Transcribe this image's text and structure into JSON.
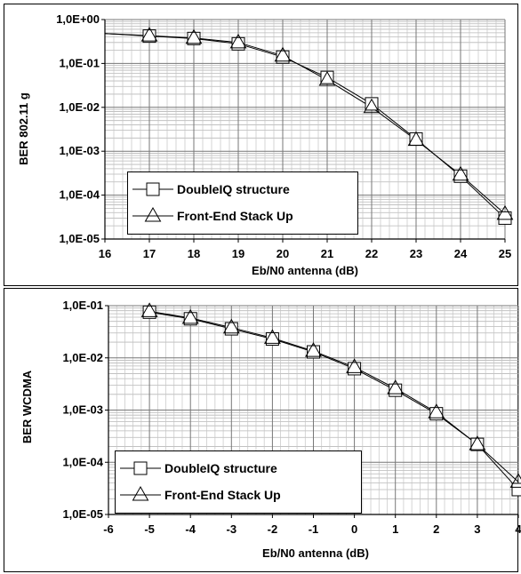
{
  "chart_data": [
    {
      "type": "line",
      "xlabel": "Eb/N0 antenna (dB)",
      "ylabel": "BER 802.11 g",
      "xlim": [
        16,
        25
      ],
      "ylim": [
        1e-05,
        1
      ],
      "y_scale": "log",
      "x_ticks": [
        "16",
        "17",
        "18",
        "19",
        "20",
        "21",
        "22",
        "23",
        "24",
        "25"
      ],
      "y_ticks": [
        "1,0E+00",
        "1,0E-01",
        "1,0E-02",
        "1,0E-03",
        "1,0E-04",
        "1,0E-05"
      ],
      "grid": true,
      "legend_position": "bottom-left",
      "series": [
        {
          "name": "DoubleIQ structure",
          "marker": "square",
          "x": [
            16,
            17,
            18,
            19,
            20,
            21,
            22,
            23,
            24,
            25
          ],
          "y": [
            0.48,
            0.42,
            0.37,
            0.28,
            0.14,
            0.048,
            0.012,
            0.0019,
            0.00027,
            3e-05
          ]
        },
        {
          "name": "Front-End Stack Up",
          "marker": "triangle",
          "x": [
            16,
            17,
            18,
            19,
            20,
            21,
            22,
            23,
            24,
            25
          ],
          "y": [
            0.48,
            0.43,
            0.38,
            0.3,
            0.15,
            0.042,
            0.01,
            0.0018,
            0.00029,
            3.7e-05
          ]
        }
      ]
    },
    {
      "type": "line",
      "xlabel": "Eb/N0 antenna (dB)",
      "ylabel": "BER WCDMA",
      "xlim": [
        -6,
        4
      ],
      "ylim": [
        1e-05,
        0.1
      ],
      "y_scale": "log",
      "x_ticks": [
        "-6",
        "-5",
        "-4",
        "-3",
        "-2",
        "-1",
        "0",
        "1",
        "2",
        "3",
        "4"
      ],
      "y_ticks": [
        "1,0E-01",
        "1,0E-02",
        "1,0E-03",
        "1,0E-04",
        "1,0E-05"
      ],
      "grid": true,
      "legend_position": "bottom-left",
      "series": [
        {
          "name": "DoubleIQ structure",
          "marker": "square",
          "x": [
            -5,
            -4,
            -3,
            -2,
            -1,
            0,
            1,
            2,
            3,
            4
          ],
          "y": [
            0.075,
            0.056,
            0.036,
            0.023,
            0.013,
            0.0062,
            0.0024,
            0.00085,
            0.00022,
            3e-05
          ]
        },
        {
          "name": "Front-End Stack Up",
          "marker": "triangle",
          "x": [
            -5,
            -4,
            -3,
            -2,
            -1,
            0,
            1,
            2,
            3,
            4
          ],
          "y": [
            0.078,
            0.058,
            0.038,
            0.024,
            0.0135,
            0.0066,
            0.0026,
            0.0009,
            0.00022,
            4.2e-05
          ]
        }
      ]
    }
  ]
}
